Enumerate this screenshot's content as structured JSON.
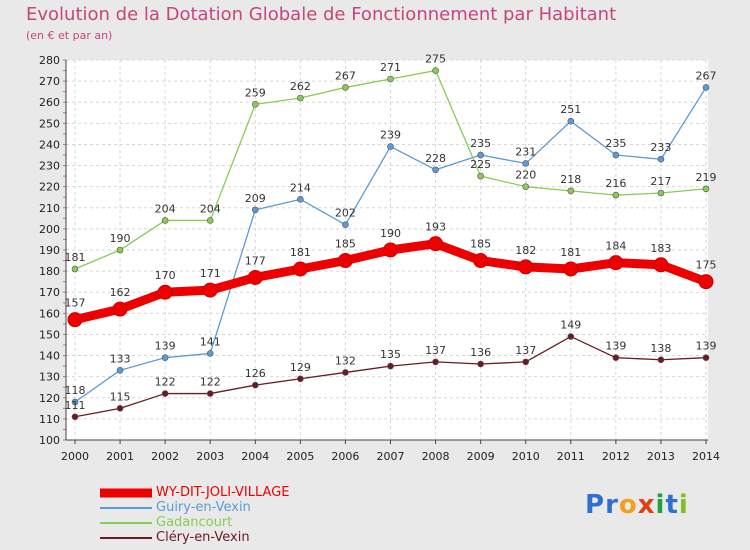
{
  "chart_data": {
    "type": "line",
    "title": "Evolution de la Dotation Globale de Fonctionnement par Habitant",
    "subtitle": "(en € et par an)",
    "x": [
      "2000",
      "2001",
      "2002",
      "2003",
      "2004",
      "2005",
      "2006",
      "2007",
      "2008",
      "2009",
      "2010",
      "2011",
      "2012",
      "2013",
      "2014"
    ],
    "ylim": [
      100,
      280
    ],
    "yticks": [
      100,
      110,
      120,
      130,
      140,
      150,
      160,
      170,
      180,
      190,
      200,
      210,
      220,
      230,
      240,
      250,
      260,
      270,
      280
    ],
    "grid": true,
    "legend_position": "bottom-left",
    "series": [
      {
        "name": "WY-DIT-JOLI-VILLAGE",
        "color": "#ee0000",
        "values": [
          157,
          162,
          170,
          171,
          177,
          181,
          185,
          190,
          193,
          185,
          182,
          181,
          184,
          183,
          175
        ]
      },
      {
        "name": "Guiry-en-Vexin",
        "color": "#5b9bd5",
        "values": [
          118,
          133,
          139,
          141,
          209,
          214,
          202,
          239,
          228,
          235,
          231,
          251,
          235,
          233,
          267
        ]
      },
      {
        "name": "Gadancourt",
        "color": "#88cc55",
        "values": [
          181,
          190,
          204,
          204,
          259,
          262,
          267,
          271,
          275,
          225,
          220,
          218,
          216,
          217,
          219
        ]
      },
      {
        "name": "Cléry-en-Vexin",
        "color": "#6b1a22",
        "values": [
          111,
          115,
          122,
          122,
          126,
          129,
          132,
          135,
          137,
          136,
          137,
          149,
          139,
          138,
          139
        ]
      }
    ]
  },
  "logo": {
    "text": "Proxiti",
    "letters": [
      "P",
      "r",
      "o",
      "x",
      "i",
      "t",
      "i"
    ],
    "colors": [
      "#2f6fd0",
      "#2f6fd0",
      "#f0a020",
      "#e04010",
      "#20a040",
      "#2f6fd0",
      "#80c020"
    ]
  }
}
